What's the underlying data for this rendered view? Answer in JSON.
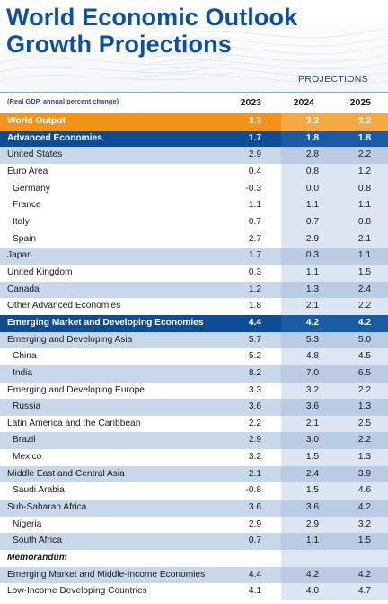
{
  "header": {
    "title_line1": "World Economic Outlook",
    "title_line2": "Growth Projections",
    "projections_label": "PROJECTIONS"
  },
  "table": {
    "note": "(Real GDP, annual percent change)",
    "years": [
      "2023",
      "2024",
      "2025"
    ],
    "rows": [
      {
        "label": "World Output",
        "values": [
          "3.3",
          "3.2",
          "3.2"
        ],
        "style": "hl-orange"
      },
      {
        "label": "Advanced Economies",
        "values": [
          "1.7",
          "1.8",
          "1.8"
        ],
        "style": "hl-blue"
      },
      {
        "label": "United States",
        "values": [
          "2.9",
          "2.8",
          "2.2"
        ],
        "style": "alt"
      },
      {
        "label": "Euro Area",
        "values": [
          "0.4",
          "0.8",
          "1.2"
        ],
        "style": "white"
      },
      {
        "label": "Germany",
        "values": [
          "-0.3",
          "0.0",
          "0.8"
        ],
        "style": "white",
        "indent": true
      },
      {
        "label": "France",
        "values": [
          "1.1",
          "1.1",
          "1.1"
        ],
        "style": "white",
        "indent": true
      },
      {
        "label": "Italy",
        "values": [
          "0.7",
          "0.7",
          "0.8"
        ],
        "style": "white",
        "indent": true
      },
      {
        "label": "Spain",
        "values": [
          "2.7",
          "2.9",
          "2.1"
        ],
        "style": "white",
        "indent": true
      },
      {
        "label": "Japan",
        "values": [
          "1.7",
          "0.3",
          "1.1"
        ],
        "style": "alt"
      },
      {
        "label": "United Kingdom",
        "values": [
          "0.3",
          "1.1",
          "1.5"
        ],
        "style": "white"
      },
      {
        "label": "Canada",
        "values": [
          "1.2",
          "1.3",
          "2.4"
        ],
        "style": "alt"
      },
      {
        "label": "Other Advanced Economies",
        "values": [
          "1.8",
          "2.1",
          "2.2"
        ],
        "style": "white"
      },
      {
        "label": "Emerging Market and Developing Economies",
        "values": [
          "4.4",
          "4.2",
          "4.2"
        ],
        "style": "hl-blue"
      },
      {
        "label": "Emerging and Developing Asia",
        "values": [
          "5.7",
          "5.3",
          "5.0"
        ],
        "style": "alt"
      },
      {
        "label": "China",
        "values": [
          "5.2",
          "4.8",
          "4.5"
        ],
        "style": "white",
        "indent": true
      },
      {
        "label": "India",
        "values": [
          "8.2",
          "7.0",
          "6.5"
        ],
        "style": "alt",
        "indent": true
      },
      {
        "label": "Emerging and Developing Europe",
        "values": [
          "3.3",
          "3.2",
          "2.2"
        ],
        "style": "white"
      },
      {
        "label": "Russia",
        "values": [
          "3.6",
          "3.6",
          "1.3"
        ],
        "style": "alt",
        "indent": true
      },
      {
        "label": "Latin America and the Caribbean",
        "values": [
          "2.2",
          "2.1",
          "2.5"
        ],
        "style": "white"
      },
      {
        "label": "Brazil",
        "values": [
          "2.9",
          "3.0",
          "2.2"
        ],
        "style": "alt",
        "indent": true
      },
      {
        "label": "Mexico",
        "values": [
          "3.2",
          "1.5",
          "1.3"
        ],
        "style": "white",
        "indent": true
      },
      {
        "label": "Middle East and Central Asia",
        "values": [
          "2.1",
          "2.4",
          "3.9"
        ],
        "style": "alt"
      },
      {
        "label": "Saudi Arabia",
        "values": [
          "-0.8",
          "1.5",
          "4.6"
        ],
        "style": "white",
        "indent": true
      },
      {
        "label": "Sub-Saharan Africa",
        "values": [
          "3.6",
          "3.6",
          "4.2"
        ],
        "style": "alt"
      },
      {
        "label": "Nigeria",
        "values": [
          "2.9",
          "2.9",
          "3.2"
        ],
        "style": "white",
        "indent": true
      },
      {
        "label": "South Africa",
        "values": [
          "0.7",
          "1.1",
          "1.5"
        ],
        "style": "alt",
        "indent": true
      },
      {
        "label": "Memorandum",
        "values": [
          "",
          "",
          ""
        ],
        "style": "white",
        "memo": true
      },
      {
        "label": "Emerging Market and Middle-Income Economies",
        "values": [
          "4.4",
          "4.2",
          "4.2"
        ],
        "style": "alt"
      },
      {
        "label": "Low-Income Developing Countries",
        "values": [
          "4.1",
          "4.0",
          "4.7"
        ],
        "style": "white"
      }
    ]
  },
  "colors": {
    "title": "#0d4fa0",
    "highlight_orange": "#f39319",
    "highlight_blue": "#0e4d96",
    "row_alt": "#c8d7ea"
  }
}
